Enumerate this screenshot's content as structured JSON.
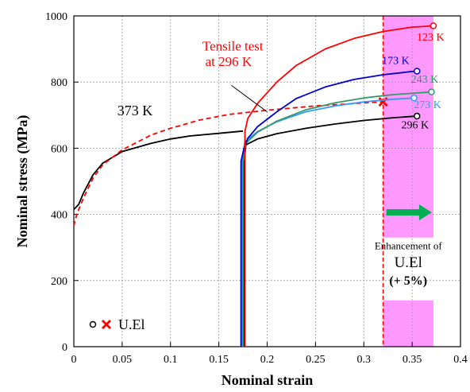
{
  "chart_data": {
    "type": "line",
    "title": "",
    "xlabel": "Nominal strain",
    "ylabel": "Nominal stress (MPa)",
    "xlim": [
      0,
      0.4
    ],
    "ylim": [
      0,
      1000
    ],
    "x_ticks": [
      0,
      0.05,
      0.1,
      0.15,
      0.2,
      0.25,
      0.3,
      0.35,
      0.4
    ],
    "x_tick_labels": [
      "0",
      "0.05",
      "0.1",
      "0.15",
      "0.2",
      "0.25",
      "0.3",
      "0.35",
      "0.4"
    ],
    "y_ticks": [
      0,
      200,
      400,
      600,
      800,
      1000
    ],
    "y_tick_labels": [
      "0",
      "200",
      "400",
      "600",
      "800",
      "1000"
    ],
    "grid": true,
    "series": [
      {
        "name": "373 K",
        "color": "#000000",
        "dash": "solid",
        "end_marker": "none",
        "points": [
          [
            0,
            415
          ],
          [
            0.005,
            430
          ],
          [
            0.01,
            465
          ],
          [
            0.02,
            520
          ],
          [
            0.03,
            555
          ],
          [
            0.05,
            590
          ],
          [
            0.08,
            615
          ],
          [
            0.1,
            628
          ],
          [
            0.12,
            637
          ],
          [
            0.15,
            645
          ],
          [
            0.175,
            652
          ]
        ]
      },
      {
        "name": "Tensile test at 296 K",
        "color": "#ff0000",
        "dash": "dashed",
        "end_marker": "cross",
        "points": [
          [
            0,
            365
          ],
          [
            0.003,
            400
          ],
          [
            0.01,
            450
          ],
          [
            0.02,
            510
          ],
          [
            0.03,
            550
          ],
          [
            0.05,
            595
          ],
          [
            0.08,
            640
          ],
          [
            0.1,
            660
          ],
          [
            0.13,
            685
          ],
          [
            0.16,
            702
          ],
          [
            0.2,
            715
          ],
          [
            0.25,
            728
          ],
          [
            0.3,
            737
          ],
          [
            0.32,
            740
          ]
        ]
      },
      {
        "name": "296 K",
        "color": "#000000",
        "dash": "solid",
        "end_marker": "circle",
        "points": [
          [
            0.176,
            0
          ],
          [
            0.176,
            555
          ],
          [
            0.178,
            610
          ],
          [
            0.19,
            628
          ],
          [
            0.21,
            644
          ],
          [
            0.24,
            660
          ],
          [
            0.27,
            673
          ],
          [
            0.3,
            684
          ],
          [
            0.33,
            692
          ],
          [
            0.355,
            697
          ]
        ]
      },
      {
        "name": "273 K",
        "color": "#3399ff",
        "dash": "solid",
        "end_marker": "circle",
        "points": [
          [
            0.174,
            0
          ],
          [
            0.174,
            560
          ],
          [
            0.177,
            620
          ],
          [
            0.19,
            650
          ],
          [
            0.21,
            680
          ],
          [
            0.24,
            710
          ],
          [
            0.27,
            728
          ],
          [
            0.3,
            740
          ],
          [
            0.33,
            748
          ],
          [
            0.352,
            752
          ]
        ]
      },
      {
        "name": "243 K",
        "color": "#339966",
        "dash": "solid",
        "end_marker": "circle",
        "points": [
          [
            0.175,
            0
          ],
          [
            0.175,
            560
          ],
          [
            0.178,
            615
          ],
          [
            0.19,
            648
          ],
          [
            0.21,
            682
          ],
          [
            0.24,
            716
          ],
          [
            0.27,
            737
          ],
          [
            0.3,
            752
          ],
          [
            0.33,
            762
          ],
          [
            0.36,
            768
          ],
          [
            0.37,
            770
          ]
        ]
      },
      {
        "name": "173 K",
        "color": "#0000cc",
        "dash": "solid",
        "end_marker": "circle",
        "points": [
          [
            0.173,
            0
          ],
          [
            0.173,
            560
          ],
          [
            0.176,
            600
          ],
          [
            0.18,
            630
          ],
          [
            0.19,
            665
          ],
          [
            0.21,
            710
          ],
          [
            0.23,
            750
          ],
          [
            0.26,
            785
          ],
          [
            0.29,
            808
          ],
          [
            0.32,
            822
          ],
          [
            0.35,
            832
          ],
          [
            0.355,
            833
          ]
        ]
      },
      {
        "name": "123 K",
        "color": "#ff0000",
        "dash": "solid",
        "end_marker": "circle",
        "points": [
          [
            0.177,
            0
          ],
          [
            0.177,
            650
          ],
          [
            0.18,
            690
          ],
          [
            0.19,
            735
          ],
          [
            0.21,
            800
          ],
          [
            0.23,
            850
          ],
          [
            0.26,
            900
          ],
          [
            0.29,
            932
          ],
          [
            0.32,
            953
          ],
          [
            0.35,
            966
          ],
          [
            0.372,
            970
          ]
        ]
      }
    ],
    "annotations": [
      {
        "text": "373 K",
        "x": 0.045,
        "y": 700,
        "color": "#000000",
        "size": 18,
        "anchor": "start"
      },
      {
        "text": "Tensile test",
        "x": 0.133,
        "y": 895,
        "color": "#ff0000",
        "size": 17,
        "anchor": "start"
      },
      {
        "text": "at 296 K",
        "x": 0.136,
        "y": 848,
        "color": "#ff0000",
        "size": 17,
        "anchor": "start"
      },
      {
        "text": "123 K",
        "x": 0.369,
        "y": 925,
        "color": "#ff0000",
        "size": 14,
        "anchor": "middle"
      },
      {
        "text": "173 K",
        "x": 0.333,
        "y": 855,
        "color": "#0000cc",
        "size": 14,
        "anchor": "middle"
      },
      {
        "text": "243 K",
        "x": 0.363,
        "y": 798,
        "color": "#339966",
        "size": 14,
        "anchor": "middle"
      },
      {
        "text": "273 K",
        "x": 0.366,
        "y": 721,
        "color": "#3399ff",
        "size": 14,
        "anchor": "middle"
      },
      {
        "text": "296 K",
        "x": 0.353,
        "y": 660,
        "color": "#000000",
        "size": 14,
        "anchor": "middle"
      },
      {
        "text": "Enhancement of",
        "x": 0.346,
        "y": 295,
        "color": "#000000",
        "size": 13,
        "anchor": "middle"
      },
      {
        "text": "U.El",
        "x": 0.346,
        "y": 240,
        "color": "#000000",
        "size": 19,
        "anchor": "middle"
      },
      {
        "text": "(+ 5%)",
        "x": 0.346,
        "y": 187,
        "color": "#000000",
        "size": 16,
        "anchor": "middle",
        "bold": true
      }
    ],
    "pointer_line": [
      [
        0.2,
        710
      ],
      [
        0.163,
        790
      ]
    ],
    "highlight_band": {
      "x_range": [
        0.32,
        0.372
      ],
      "color": "#ff99ff",
      "label_gap_y": [
        140,
        330
      ]
    },
    "arrow": {
      "from": [
        0.32,
        406
      ],
      "to": [
        0.372,
        406
      ],
      "color": "#00b050"
    },
    "legend": {
      "label": "U.El",
      "position": "bottom-left",
      "marker_colors": [
        "#000000",
        "#ff0000"
      ]
    }
  }
}
